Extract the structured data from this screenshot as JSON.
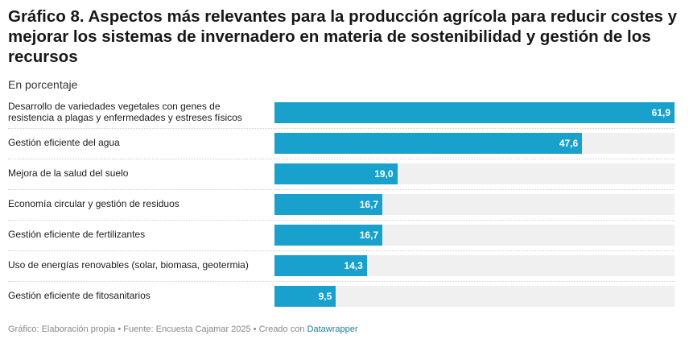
{
  "title": "Gráfico 8. Aspectos más relevantes para la producción agrícola para reducir costes y mejorar los sistemas de invernadero en materia de sostenibilidad y gestión de los recursos",
  "subtitle": "En porcentaje",
  "footer": {
    "text": "Gráfico: Elaboración propia • Fuente: Encuesta Cajamar 2025 • Creado con ",
    "brand": "Datawrapper"
  },
  "colors": {
    "bar": "#18a1cd",
    "track": "#f0f0f0"
  },
  "chart_data": {
    "type": "bar",
    "orientation": "horizontal",
    "title": "Gráfico 8. Aspectos más relevantes para la producción agrícola para reducir costes y mejorar los sistemas de invernadero en materia de sostenibilidad y gestión de los recursos",
    "subtitle": "En porcentaje",
    "xlim": [
      0,
      61.9
    ],
    "grid": false,
    "categories": [
      "Desarrollo de variedades vegetales con genes de resistencia a plagas y enfermedades y estreses físicos",
      "Gestión eficiente del agua",
      "Mejora de la salud del suelo",
      "Economía circular y gestión de residuos",
      "Gestión eficiente de fertilizantes",
      "Uso de energías renovables (solar, biomasa, geotermia)",
      "Gestión eficiente de fitosanitarios"
    ],
    "values": [
      61.9,
      47.6,
      19.0,
      16.7,
      16.7,
      14.3,
      9.5
    ],
    "value_labels": [
      "61,9",
      "47,6",
      "19,0",
      "16,7",
      "16,7",
      "14,3",
      "9,5"
    ]
  }
}
